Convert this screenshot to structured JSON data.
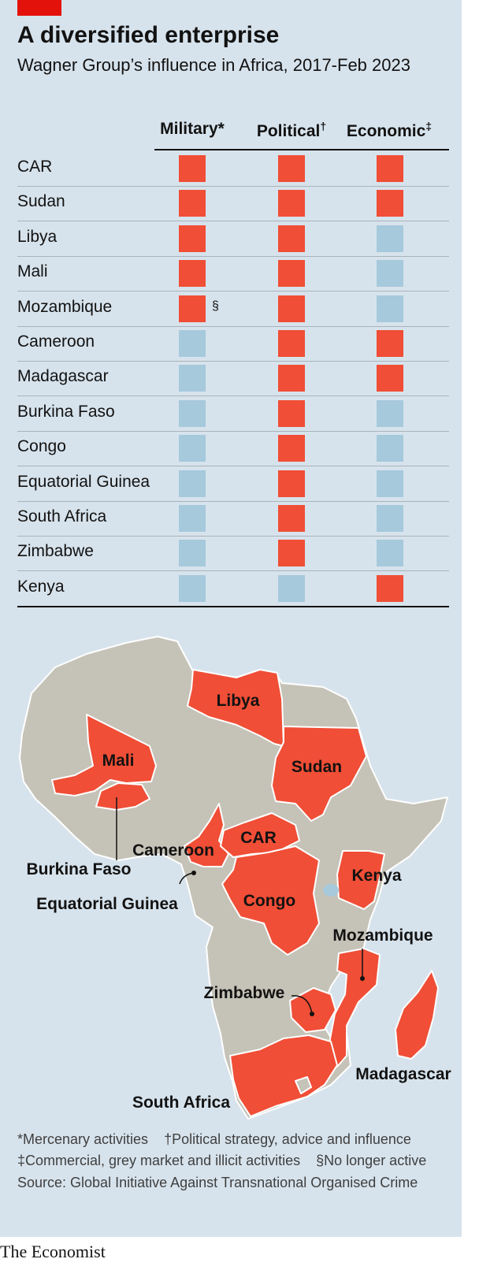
{
  "header": {
    "title": "A diversified enterprise",
    "subtitle": "Wagner Group’s influence in Africa, 2017-Feb 2023"
  },
  "chart_data": {
    "type": "table",
    "columns": [
      {
        "label": "Military",
        "mark": "*"
      },
      {
        "label": "Political",
        "mark": "†"
      },
      {
        "label": "Economic",
        "mark": "‡"
      }
    ],
    "rows": [
      {
        "country": "CAR",
        "values": [
          true,
          true,
          true
        ],
        "note": ""
      },
      {
        "country": "Sudan",
        "values": [
          true,
          true,
          true
        ],
        "note": ""
      },
      {
        "country": "Libya",
        "values": [
          true,
          true,
          false
        ],
        "note": ""
      },
      {
        "country": "Mali",
        "values": [
          true,
          true,
          false
        ],
        "note": ""
      },
      {
        "country": "Mozambique",
        "values": [
          true,
          true,
          false
        ],
        "note": "§"
      },
      {
        "country": "Cameroon",
        "values": [
          false,
          true,
          true
        ],
        "note": ""
      },
      {
        "country": "Madagascar",
        "values": [
          false,
          true,
          true
        ],
        "note": ""
      },
      {
        "country": "Burkina Faso",
        "values": [
          false,
          true,
          false
        ],
        "note": ""
      },
      {
        "country": "Congo",
        "values": [
          false,
          true,
          false
        ],
        "note": ""
      },
      {
        "country": "Equatorial Guinea",
        "values": [
          false,
          true,
          false
        ],
        "note": ""
      },
      {
        "country": "South Africa",
        "values": [
          false,
          true,
          false
        ],
        "note": ""
      },
      {
        "country": "Zimbabwe",
        "values": [
          false,
          true,
          false
        ],
        "note": ""
      },
      {
        "country": "Kenya",
        "values": [
          false,
          false,
          true
        ],
        "note": ""
      }
    ],
    "colors": {
      "active": "#f04e36",
      "inactive": "#a6c9dc",
      "map_other": "#c5c2b7",
      "background": "#d7e3ec"
    }
  },
  "map": {
    "labels": {
      "libya": "Libya",
      "mali": "Mali",
      "sudan": "Sudan",
      "car": "CAR",
      "cameroon": "Cameroon",
      "burkina": "Burkina Faso",
      "kenya": "Kenya",
      "eqguinea": "Equatorial Guinea",
      "congo": "Congo",
      "mozambique": "Mozambique",
      "zimbabwe": "Zimbabwe",
      "madagascar": "Madagascar",
      "southafrica": "South Africa"
    }
  },
  "footnotes": {
    "line1a": "*Mercenary activities",
    "line1b": "†Political strategy, advice and influence",
    "line2a": "‡Commercial, grey market and illicit activities",
    "line2b": "§No longer active",
    "source": "Source: Global Initiative Against Transnational Organised Crime"
  },
  "brand": "The Economist"
}
